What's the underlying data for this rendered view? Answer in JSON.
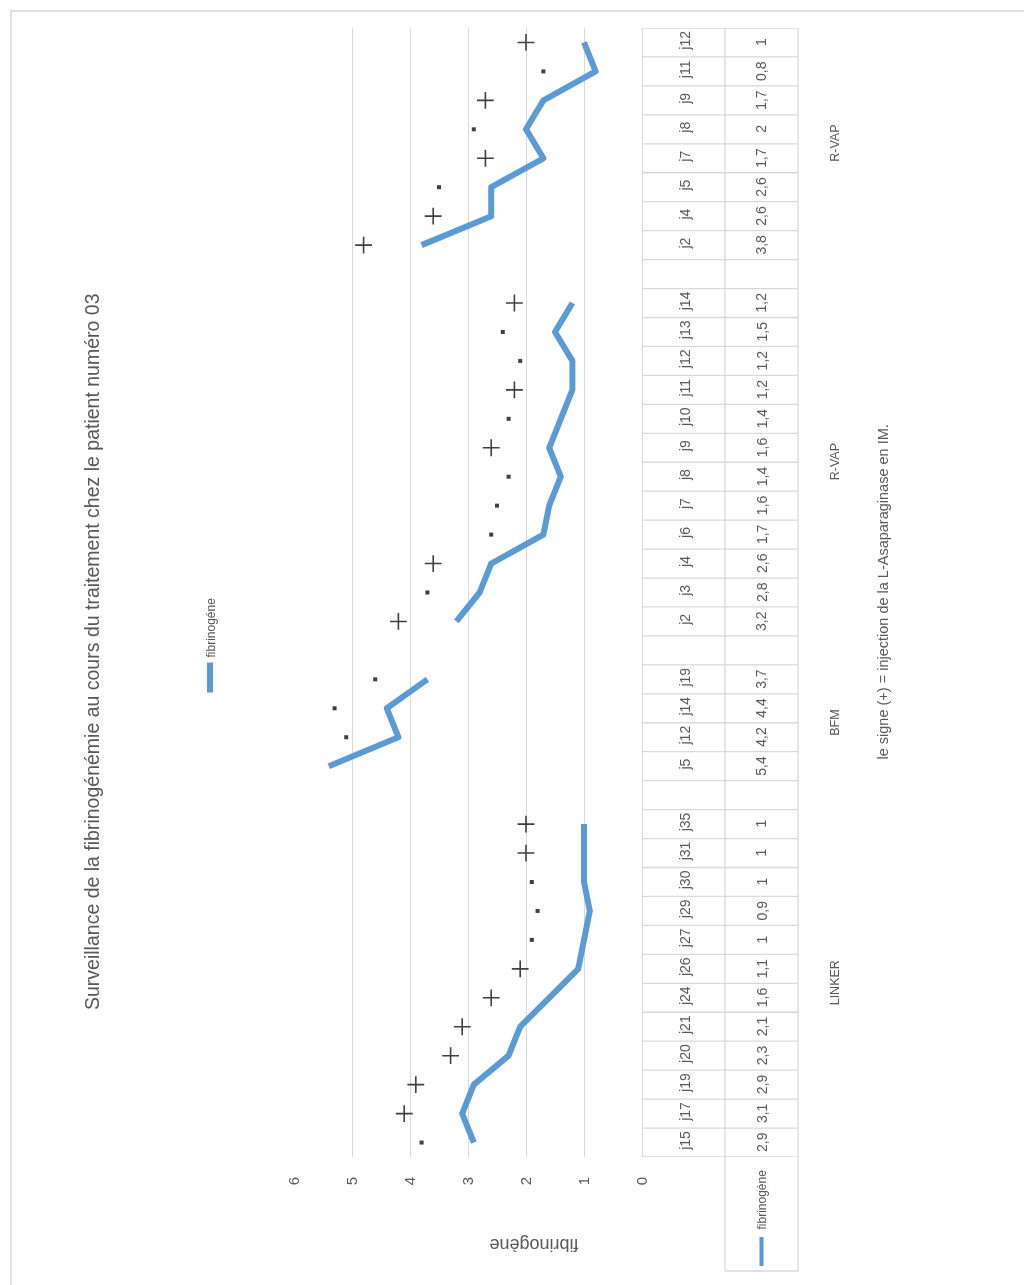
{
  "chart_data": {
    "type": "line",
    "orientation": "horizontal",
    "title": "Surveillance de la fibrinogénémie au cours du traitement chez le patient numéro 03",
    "xlabel": "fibrinogène",
    "categories": [
      "j12",
      "j11",
      "j9",
      "j8",
      "j7",
      "j5",
      "j4",
      "j2",
      null,
      "j14",
      "j13",
      "j12",
      "j11",
      "j10",
      "j9",
      "j8",
      "j7",
      "j6",
      "j4",
      "j3",
      "j2",
      null,
      "j19",
      "j14",
      "j12",
      "j5",
      null,
      "j35",
      "j31",
      "j30",
      "j29",
      "j27",
      "j26",
      "j24",
      "j21",
      "j20",
      "j19",
      "j17",
      "j15"
    ],
    "series": [
      {
        "name": "fibrinogéne",
        "color": "#5b9bd5",
        "values": [
          1,
          0.8,
          1.7,
          2,
          1.7,
          2.6,
          2.6,
          3.8,
          null,
          1.2,
          1.5,
          1.2,
          1.2,
          1.4,
          1.6,
          1.4,
          1.6,
          1.7,
          2.6,
          2.8,
          3.2,
          null,
          3.7,
          4.4,
          4.2,
          5.4,
          null,
          1,
          1,
          1,
          0.9,
          1,
          1.1,
          1.6,
          2.1,
          2.3,
          2.9,
          3.1,
          2.9
        ],
        "value_labels": [
          "1",
          "0,8",
          "1,7",
          "2",
          "1,7",
          "2,6",
          "2,6",
          "3,8",
          null,
          "1,2",
          "1,5",
          "1,2",
          "1,2",
          "1,4",
          "1,6",
          "1,4",
          "1,6",
          "1,7",
          "2,6",
          "2,8",
          "3,2",
          null,
          "3,7",
          "4,4",
          "4,2",
          "5,4",
          null,
          "1",
          "1",
          "1",
          "0,9",
          "1",
          "1,1",
          "1,6",
          "2,1",
          "2,3",
          "2,9",
          "3,1",
          "2,9"
        ]
      },
      {
        "type": "scatter",
        "marker": "cross",
        "color": "#404040",
        "values": [
          2.0,
          null,
          2.7,
          null,
          2.7,
          null,
          3.6,
          4.8,
          null,
          2.2,
          null,
          null,
          2.2,
          null,
          2.6,
          null,
          null,
          null,
          3.6,
          null,
          4.2,
          null,
          null,
          null,
          null,
          null,
          null,
          2.0,
          2.0,
          null,
          null,
          null,
          2.1,
          2.6,
          3.1,
          3.3,
          3.9,
          4.1,
          null
        ]
      },
      {
        "type": "scatter",
        "marker": "square",
        "color": "#404040",
        "values": [
          null,
          1.7,
          null,
          2.9,
          null,
          3.5,
          null,
          null,
          null,
          null,
          2.4,
          2.1,
          null,
          2.3,
          null,
          2.3,
          2.5,
          2.6,
          null,
          3.7,
          null,
          null,
          4.6,
          5.3,
          5.1,
          null,
          null,
          null,
          null,
          1.9,
          1.8,
          1.9,
          null,
          null,
          null,
          null,
          null,
          null,
          3.8
        ]
      }
    ],
    "xlim": [
      6,
      0
    ],
    "xticks": [
      0,
      1,
      2,
      3,
      4,
      5,
      6
    ],
    "grid": "x",
    "legend": "left",
    "marker": "none",
    "annotations": [
      "R-VAP",
      "R-VAP",
      "BFM",
      "LINKER",
      "le signe (+) = injection de la L-Asaparaginase en IM."
    ]
  }
}
